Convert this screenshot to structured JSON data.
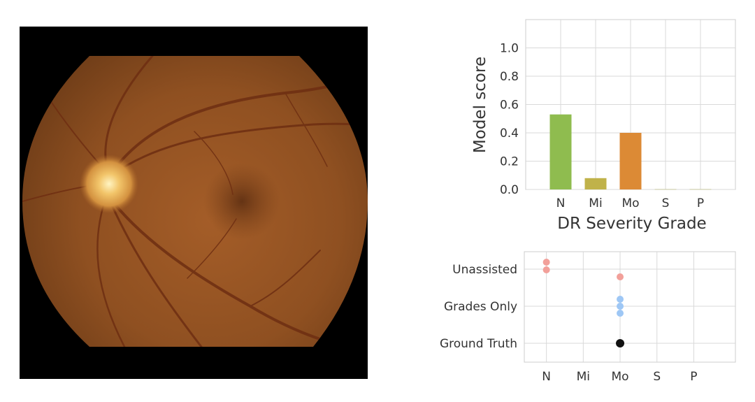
{
  "fundus_image": {
    "icon": "retina-fundus-photo"
  },
  "chart_data": [
    {
      "type": "bar",
      "categories": [
        "N",
        "Mi",
        "Mo",
        "S",
        "P"
      ],
      "values": [
        0.53,
        0.08,
        0.4,
        0.003,
        0.003
      ],
      "colors": [
        "#8fbc4f",
        "#c0b24a",
        "#dc8a35",
        "#c9c9a0",
        "#c9c9a0"
      ],
      "title": "",
      "xlabel": "DR Severity Grade",
      "ylabel": "Model score",
      "ylim": [
        0,
        1.2
      ],
      "yticks": [
        "0.0",
        "0.2",
        "0.4",
        "0.6",
        "0.8",
        "1.0"
      ],
      "grid": true
    },
    {
      "type": "scatter",
      "categories": [
        "N",
        "Mi",
        "Mo",
        "S",
        "P"
      ],
      "rows": [
        "Unassisted",
        "Grades Only",
        "Ground Truth"
      ],
      "series": [
        {
          "row": "Unassisted",
          "color": "#f2a09a",
          "points": [
            {
              "grade": "N",
              "stack": 0
            },
            {
              "grade": "N",
              "stack": 1
            },
            {
              "grade": "Mo",
              "stack": 0
            }
          ]
        },
        {
          "row": "Grades Only",
          "color": "#9ec7f5",
          "points": [
            {
              "grade": "Mo",
              "stack": 0
            },
            {
              "grade": "Mo",
              "stack": 1
            },
            {
              "grade": "Mo",
              "stack": 2
            }
          ]
        },
        {
          "row": "Ground Truth",
          "color": "#111111",
          "points": [
            {
              "grade": "Mo",
              "stack": 0
            }
          ]
        }
      ],
      "grid": true
    }
  ]
}
